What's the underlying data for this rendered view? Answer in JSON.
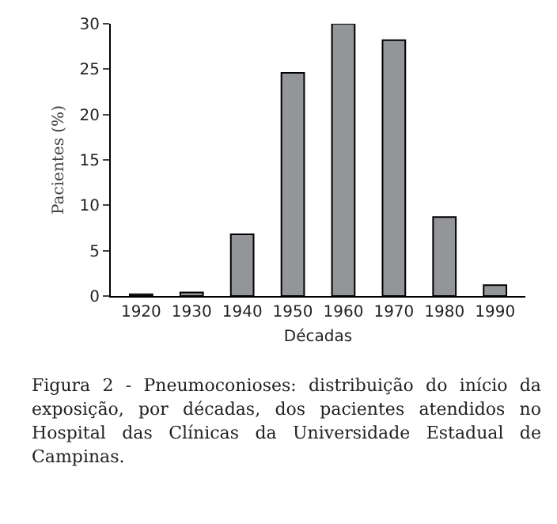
{
  "chart_data": {
    "type": "bar",
    "categories": [
      "1920",
      "1930",
      "1940",
      "1950",
      "1960",
      "1970",
      "1980",
      "1990"
    ],
    "values": [
      0.2,
      0.4,
      6.8,
      24.6,
      30,
      28.2,
      8.7,
      1.2
    ],
    "color": "#939598",
    "xlabel": "Décadas",
    "ylabel": "Pacientes (%)",
    "ylim": [
      0,
      30
    ],
    "yticks": [
      0,
      5,
      10,
      15,
      20,
      25,
      30
    ],
    "grid": false,
    "legend": false,
    "annotations": [
      "Figura 2 - Pneumoconioses: distribuição do início da exposição, por décadas, dos pacientes atendidos no Hospital das Clínicas da Universidade Estadual de Campinas."
    ]
  }
}
